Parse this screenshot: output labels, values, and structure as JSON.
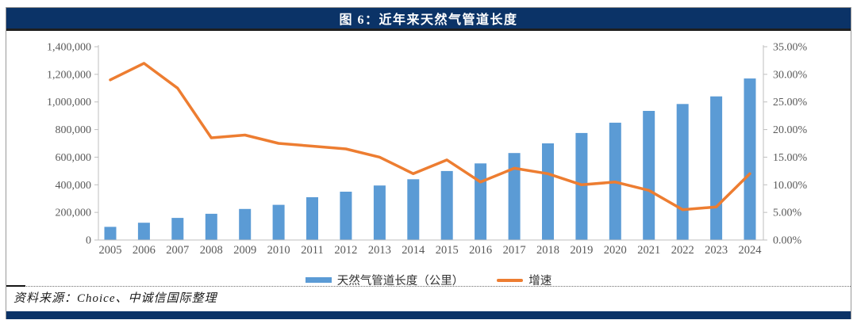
{
  "header": {
    "title": "图 6：近年来天然气管道长度"
  },
  "legend": {
    "bar_label": "天然气管道长度（公里）",
    "line_label": "增速"
  },
  "footer": {
    "source": "资料来源：Choice、中诚信国际整理"
  },
  "colors": {
    "navy": "#0b3367",
    "bar": "#5b9bd5",
    "line": "#ed7d31",
    "axis_text": "#595959",
    "axis_line": "#bfbfbf"
  },
  "chart_data": {
    "type": "combo-bar-line",
    "title": "图 6：近年来天然气管道长度",
    "categories": [
      "2005",
      "2006",
      "2007",
      "2008",
      "2009",
      "2010",
      "2011",
      "2012",
      "2013",
      "2014",
      "2015",
      "2016",
      "2017",
      "2018",
      "2019",
      "2020",
      "2021",
      "2022",
      "2023",
      "2024"
    ],
    "series": [
      {
        "name": "天然气管道长度（公里）",
        "type": "bar",
        "axis": "left",
        "values": [
          95000,
          125000,
          160000,
          190000,
          225000,
          255000,
          310000,
          350000,
          395000,
          440000,
          500000,
          555000,
          630000,
          700000,
          775000,
          850000,
          935000,
          985000,
          1040000,
          1170000
        ]
      },
      {
        "name": "增速",
        "type": "line",
        "axis": "right",
        "values_percent": [
          29,
          32,
          27.5,
          18.5,
          19,
          17.5,
          17,
          16.5,
          15,
          12,
          14.5,
          10.5,
          13,
          12,
          10,
          10.5,
          9,
          5.5,
          6,
          12
        ]
      }
    ],
    "left_axis": {
      "min": 0,
      "max": 1400000,
      "step": 200000
    },
    "right_axis": {
      "min": 0,
      "max": 35,
      "step": 5,
      "unit": "%",
      "decimals": 2
    },
    "grid": false,
    "legend_position": "bottom"
  }
}
